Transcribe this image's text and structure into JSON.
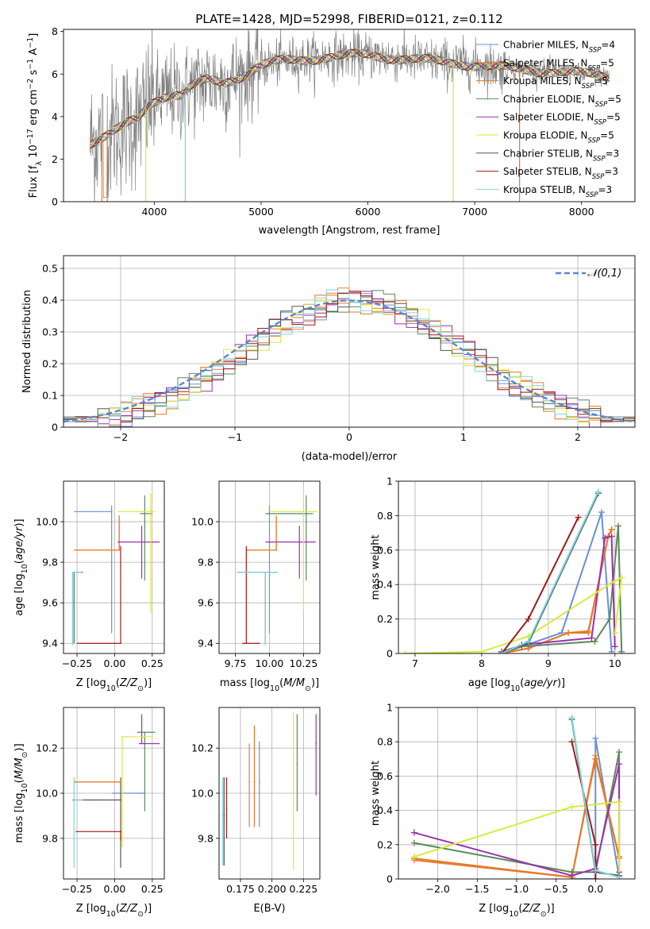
{
  "figure": {
    "title": "PLATE=1428, MJD=52998, FIBERID=0121, z=0.112"
  },
  "series_styles": [
    {
      "name": "Chabrier MILES",
      "nssp": "4",
      "color": "#6a8fd8"
    },
    {
      "name": "Salpeter MILES",
      "nssp": "5",
      "color": "#e8813a"
    },
    {
      "name": "Kroupa MILES",
      "nssp": "5",
      "color": "#e87722"
    },
    {
      "name": "Chabrier ELODIE",
      "nssp": "5",
      "color": "#5a8a5a"
    },
    {
      "name": "Salpeter ELODIE",
      "nssp": "5",
      "color": "#9b30b0"
    },
    {
      "name": "Kroupa ELODIE",
      "nssp": "5",
      "color": "#d8ea3a"
    },
    {
      "name": "Chabrier STELIB",
      "nssp": "3",
      "color": "#555555"
    },
    {
      "name": "Salpeter STELIB",
      "nssp": "3",
      "color": "#a01818"
    },
    {
      "name": "Kroupa STELIB",
      "nssp": "3",
      "color": "#7fd4dc"
    }
  ],
  "chart_data": [
    {
      "id": "spectrum",
      "type": "line",
      "title": "PLATE=1428, MJD=52998, FIBERID=0121, z=0.112",
      "xlabel": "wavelength [Angstrom, rest frame]",
      "ylabel": "Flux [f_λ 10^-17 erg cm^-2 s^-1 A^-1]",
      "xlim": [
        3150,
        8500
      ],
      "ylim": [
        0,
        8.1
      ],
      "xticks": [
        4000,
        5000,
        6000,
        7000,
        8000
      ],
      "yticks": [
        0,
        2,
        4,
        6,
        8
      ],
      "data_series": {
        "name": "data",
        "color": "#808080"
      },
      "continuum_anchors": {
        "x": [
          3400,
          3550,
          3700,
          3850,
          3950,
          4050,
          4150,
          4250,
          4350,
          4500,
          4650,
          4800,
          5000,
          5200,
          5400,
          5600,
          5800,
          6000,
          6300,
          6600,
          6900,
          7200,
          7500,
          7800,
          8000,
          8250
        ],
        "y": [
          2.8,
          3.1,
          3.5,
          3.9,
          4.6,
          4.9,
          5.1,
          5.0,
          5.4,
          5.7,
          5.6,
          5.9,
          6.4,
          6.6,
          6.7,
          6.8,
          6.85,
          6.9,
          6.75,
          6.6,
          6.5,
          6.3,
          6.2,
          6.1,
          6.0,
          5.9
        ]
      },
      "grid": false,
      "legend": "right"
    },
    {
      "id": "residuals",
      "type": "histogram",
      "xlabel": "(data-model)/error",
      "ylabel": "Normed distribution",
      "xlim": [
        -2.5,
        2.5
      ],
      "ylim": [
        0,
        0.54
      ],
      "xticks": [
        -2,
        -1,
        0,
        1,
        2
      ],
      "yticks": [
        0.0,
        0.1,
        0.2,
        0.3,
        0.4,
        0.5
      ],
      "bin_width": 0.1,
      "reference_curve": {
        "name": "𝒩(0,1)",
        "mean": 0,
        "sigma": 1
      },
      "grid": true,
      "legend": "top-right"
    },
    {
      "id": "age_vs_Z",
      "type": "scatter",
      "xlabel": "Z [log10(Z/Z☉)]",
      "ylabel": "age  [log10(age/yr)]",
      "xlim": [
        -0.34,
        0.33
      ],
      "ylim": [
        9.35,
        10.2
      ],
      "xticks": [
        -0.25,
        0.0,
        0.25
      ],
      "xticklabels": [
        "−0.25",
        "0.00",
        "0.25"
      ],
      "yticks": [
        9.4,
        9.6,
        9.8,
        10.0
      ],
      "yticklabels": [
        "9.4",
        "9.6",
        "9.8",
        "10.0"
      ],
      "points": [
        {
          "x": -0.02,
          "y": 10.05,
          "xerr": [
            0.25,
            0.0
          ],
          "yerr": [
            0.6,
            0.03
          ]
        },
        {
          "x": 0.03,
          "y": 9.86,
          "xerr": [
            0.3,
            0.0
          ],
          "yerr": [
            0.0,
            0.17
          ]
        },
        {
          "x": 0.03,
          "y": 9.86,
          "xerr": [
            0.3,
            0.0
          ],
          "yerr": [
            0.0,
            0.17
          ]
        },
        {
          "x": 0.2,
          "y": 10.04,
          "xerr": [
            0.03,
            0.05
          ],
          "yerr": [
            0.33,
            0.09
          ]
        },
        {
          "x": 0.18,
          "y": 9.9,
          "xerr": [
            0.16,
            0.12
          ],
          "yerr": [
            0.18,
            0.08
          ]
        },
        {
          "x": 0.24,
          "y": 10.05,
          "xerr": [
            0.22,
            0.03
          ],
          "yerr": [
            0.5,
            0.09
          ]
        },
        {
          "x": -0.27,
          "y": 9.75,
          "xerr": [
            0.0,
            0.06
          ],
          "yerr": [
            0.35,
            0.0
          ]
        },
        {
          "x": 0.04,
          "y": 9.4,
          "xerr": [
            0.29,
            0.0
          ],
          "yerr": [
            0.0,
            0.48
          ]
        },
        {
          "x": -0.28,
          "y": 9.75,
          "xerr": [
            0.0,
            0.06
          ],
          "yerr": [
            0.36,
            0.0
          ]
        }
      ],
      "grid": true
    },
    {
      "id": "age_vs_mass",
      "type": "scatter",
      "xlabel": "mass [log10(M/M☉)]",
      "ylabel": "",
      "xlim": [
        9.63,
        10.37
      ],
      "ylim": [
        9.35,
        10.2
      ],
      "xticks": [
        9.75,
        10.0,
        10.25
      ],
      "xticklabels": [
        "9.75",
        "10.00",
        "10.25"
      ],
      "yticks": [
        9.4,
        9.6,
        9.8,
        10.0
      ],
      "yticklabels": [
        "9.4",
        "9.6",
        "9.8",
        "10.0"
      ],
      "points": [
        {
          "x": 10.0,
          "y": 10.05,
          "xerr": [
            0.0,
            0.0
          ],
          "yerr": [
            0.6,
            0.03
          ]
        },
        {
          "x": 10.05,
          "y": 9.86,
          "xerr": [
            0.22,
            0.0
          ],
          "yerr": [
            0.0,
            0.17
          ]
        },
        {
          "x": 10.05,
          "y": 9.86,
          "xerr": [
            0.22,
            0.0
          ],
          "yerr": [
            0.0,
            0.17
          ]
        },
        {
          "x": 10.27,
          "y": 10.04,
          "xerr": [
            0.3,
            0.05
          ],
          "yerr": [
            0.33,
            0.09
          ]
        },
        {
          "x": 10.22,
          "y": 9.9,
          "xerr": [
            0.25,
            0.12
          ],
          "yerr": [
            0.18,
            0.08
          ]
        },
        {
          "x": 10.25,
          "y": 10.05,
          "xerr": [
            0.25,
            0.1
          ],
          "yerr": [
            0.5,
            0.12
          ]
        },
        {
          "x": 9.97,
          "y": 9.75,
          "xerr": [
            0.2,
            0.09
          ],
          "yerr": [
            0.35,
            0.0
          ]
        },
        {
          "x": 9.83,
          "y": 9.4,
          "xerr": [
            0.03,
            0.1
          ],
          "yerr": [
            0.0,
            0.48
          ]
        },
        {
          "x": 9.97,
          "y": 9.75,
          "xerr": [
            0.21,
            0.09
          ],
          "yerr": [
            0.36,
            0.0
          ]
        }
      ],
      "grid": true
    },
    {
      "id": "weight_vs_age",
      "type": "line",
      "xlabel": "age  [log10(age/yr)]",
      "ylabel": "mass weight",
      "xlim": [
        6.75,
        10.3
      ],
      "ylim": [
        0,
        1.0
      ],
      "xticks": [
        7,
        8,
        9,
        10
      ],
      "yticks": [
        0.0,
        0.2,
        0.4,
        0.6,
        0.8,
        1.0
      ],
      "series": [
        {
          "x": [
            8.3,
            8.6,
            9.2,
            9.8,
            9.95
          ],
          "y": [
            0.01,
            0.04,
            0.12,
            0.82,
            0.01
          ]
        },
        {
          "x": [
            8.3,
            8.7,
            9.3,
            9.6,
            9.9,
            9.95
          ],
          "y": [
            0.0,
            0.03,
            0.12,
            0.13,
            0.68,
            0.72
          ]
        },
        {
          "x": [
            8.3,
            8.7,
            9.3,
            9.6,
            9.9,
            9.95
          ],
          "y": [
            0.0,
            0.03,
            0.12,
            0.12,
            0.68,
            0.72
          ]
        },
        {
          "x": [
            8.3,
            8.6,
            9.7,
            9.92,
            10.05,
            10.1
          ],
          "y": [
            0.0,
            0.04,
            0.07,
            0.2,
            0.74,
            0.01
          ]
        },
        {
          "x": [
            8.3,
            8.6,
            9.65,
            9.85,
            9.95,
            10.0
          ],
          "y": [
            0.0,
            0.05,
            0.09,
            0.67,
            0.68,
            0.04
          ]
        },
        {
          "x": [
            6.85,
            8.0,
            8.7,
            9.95,
            10.1,
            10.0
          ],
          "y": [
            0.0,
            0.01,
            0.1,
            0.41,
            0.44,
            0.12
          ]
        },
        {
          "x": [
            8.3,
            8.7,
            9.75
          ],
          "y": [
            0.01,
            0.06,
            0.93
          ]
        },
        {
          "x": [
            8.3,
            8.7,
            9.45
          ],
          "y": [
            0.0,
            0.2,
            0.79
          ]
        },
        {
          "x": [
            8.3,
            8.7,
            9.75
          ],
          "y": [
            0.0,
            0.07,
            0.94
          ]
        }
      ],
      "grid": true
    },
    {
      "id": "mass_vs_Z",
      "type": "scatter",
      "xlabel": "Z [log10(Z/Z☉)]",
      "ylabel": "mass [log10(M/M☉)]",
      "xlim": [
        -0.34,
        0.33
      ],
      "ylim": [
        9.62,
        10.38
      ],
      "xticks": [
        -0.25,
        0.0,
        0.25
      ],
      "xticklabels": [
        "−0.25",
        "0.00",
        "0.25"
      ],
      "yticks": [
        9.8,
        10.0,
        10.2
      ],
      "yticklabels": [
        "9.8",
        "10.0",
        "10.2"
      ],
      "points": [
        {
          "x": 0.18,
          "y": 10.0,
          "xerr": [
            0.2,
            0.02
          ],
          "yerr": [
            0.0,
            0.0
          ]
        },
        {
          "x": 0.03,
          "y": 10.05,
          "xerr": [
            0.3,
            0.0
          ],
          "yerr": [
            0.0,
            0.0
          ]
        },
        {
          "x": 0.03,
          "y": 10.05,
          "xerr": [
            0.3,
            0.0
          ],
          "yerr": [
            0.0,
            0.0
          ]
        },
        {
          "x": 0.2,
          "y": 10.27,
          "xerr": [
            0.05,
            0.07
          ],
          "yerr": [
            0.35,
            0.0
          ]
        },
        {
          "x": 0.18,
          "y": 10.22,
          "xerr": [
            0.02,
            0.12
          ],
          "yerr": [
            0.0,
            0.13
          ]
        },
        {
          "x": 0.05,
          "y": 10.25,
          "xerr": [
            0.0,
            0.2
          ],
          "yerr": [
            0.49,
            0.0
          ]
        },
        {
          "x": 0.04,
          "y": 9.97,
          "xerr": [
            0.32,
            0.0
          ],
          "yerr": [
            0.3,
            0.1
          ]
        },
        {
          "x": 0.04,
          "y": 9.83,
          "xerr": [
            0.3,
            0.0
          ],
          "yerr": [
            0.04,
            0.0
          ]
        },
        {
          "x": -0.27,
          "y": 9.97,
          "xerr": [
            0.0,
            0.06
          ],
          "yerr": [
            0.3,
            0.1
          ]
        }
      ],
      "grid": true
    },
    {
      "id": "mass_vs_EBV",
      "type": "scatter",
      "xlabel": "E(B-V)",
      "ylabel": "",
      "xlim": [
        0.158,
        0.238
      ],
      "ylim": [
        9.62,
        10.38
      ],
      "xticks": [
        0.175,
        0.2,
        0.225
      ],
      "xticklabels": [
        "0.175",
        "0.200",
        "0.225"
      ],
      "yticks": [
        9.8,
        10.0,
        10.2
      ],
      "yticklabels": [
        "9.8",
        "10.0",
        "10.2"
      ],
      "points": [
        {
          "x": 0.19,
          "y": 10.05,
          "xerr": [
            0.0,
            0.0
          ],
          "yerr": [
            0.2,
            0.18
          ]
        },
        {
          "x": 0.182,
          "y": 10.05,
          "xerr": [
            0.0,
            0.0
          ],
          "yerr": [
            0.2,
            0.17
          ]
        },
        {
          "x": 0.186,
          "y": 10.05,
          "xerr": [
            0.0,
            0.0
          ],
          "yerr": [
            0.2,
            0.25
          ]
        },
        {
          "x": 0.22,
          "y": 10.13,
          "xerr": [
            0.0,
            0.0
          ],
          "yerr": [
            0.21,
            0.22
          ]
        },
        {
          "x": 0.235,
          "y": 10.22,
          "xerr": [
            0.0,
            0.0
          ],
          "yerr": [
            0.23,
            0.13
          ]
        },
        {
          "x": 0.217,
          "y": 10.0,
          "xerr": [
            0.0,
            0.0
          ],
          "yerr": [
            0.34,
            0.36
          ]
        },
        {
          "x": 0.162,
          "y": 9.9,
          "xerr": [
            0.0,
            0.0
          ],
          "yerr": [
            0.22,
            0.17
          ]
        },
        {
          "x": 0.164,
          "y": 9.93,
          "xerr": [
            0.0,
            0.0
          ],
          "yerr": [
            0.13,
            0.14
          ]
        },
        {
          "x": 0.161,
          "y": 9.88,
          "xerr": [
            0.0,
            0.0
          ],
          "yerr": [
            0.2,
            0.19
          ]
        }
      ],
      "grid": true
    },
    {
      "id": "weight_vs_Z",
      "type": "line",
      "xlabel": "Z [log10(Z/Z☉)]",
      "ylabel": "mass weight",
      "xlim": [
        -2.5,
        0.5
      ],
      "ylim": [
        0,
        1.0
      ],
      "xticks": [
        -2.0,
        -1.5,
        -1.0,
        -0.5,
        0.0
      ],
      "xticklabels": [
        "−2.0",
        "−1.5",
        "−1.0",
        "−0.5",
        "0.0"
      ],
      "yticks": [
        0.0,
        0.2,
        0.4,
        0.6,
        0.8,
        1.0
      ],
      "series": [
        {
          "x": [
            -0.3,
            0.0,
            0.0,
            0.3
          ],
          "y": [
            0.0,
            0.0,
            0.82,
            0.01
          ]
        },
        {
          "x": [
            -2.3,
            -0.3,
            0.0,
            0.3
          ],
          "y": [
            0.11,
            0.01,
            0.72,
            0.12
          ]
        },
        {
          "x": [
            -2.3,
            -0.3,
            0.0,
            0.3
          ],
          "y": [
            0.12,
            0.01,
            0.7,
            0.13
          ]
        },
        {
          "x": [
            -2.3,
            -0.3,
            0.0,
            0.3,
            0.3
          ],
          "y": [
            0.21,
            0.04,
            0.04,
            0.74,
            0.01
          ]
        },
        {
          "x": [
            -2.3,
            -0.3,
            0.0,
            0.3,
            0.3
          ],
          "y": [
            0.27,
            0.02,
            0.06,
            0.67,
            0.04
          ]
        },
        {
          "x": [
            -2.3,
            -0.3,
            0.3,
            0.3
          ],
          "y": [
            0.13,
            0.42,
            0.45,
            0.01
          ]
        },
        {
          "x": [
            -0.3,
            0.0,
            0.3
          ],
          "y": [
            0.93,
            0.04,
            0.02
          ]
        },
        {
          "x": [
            -0.3,
            0.0,
            0.0
          ],
          "y": [
            0.8,
            0.2,
            0.0
          ]
        },
        {
          "x": [
            -0.3,
            0.0,
            0.3
          ],
          "y": [
            0.94,
            0.05,
            0.01
          ]
        }
      ],
      "grid": true
    }
  ]
}
